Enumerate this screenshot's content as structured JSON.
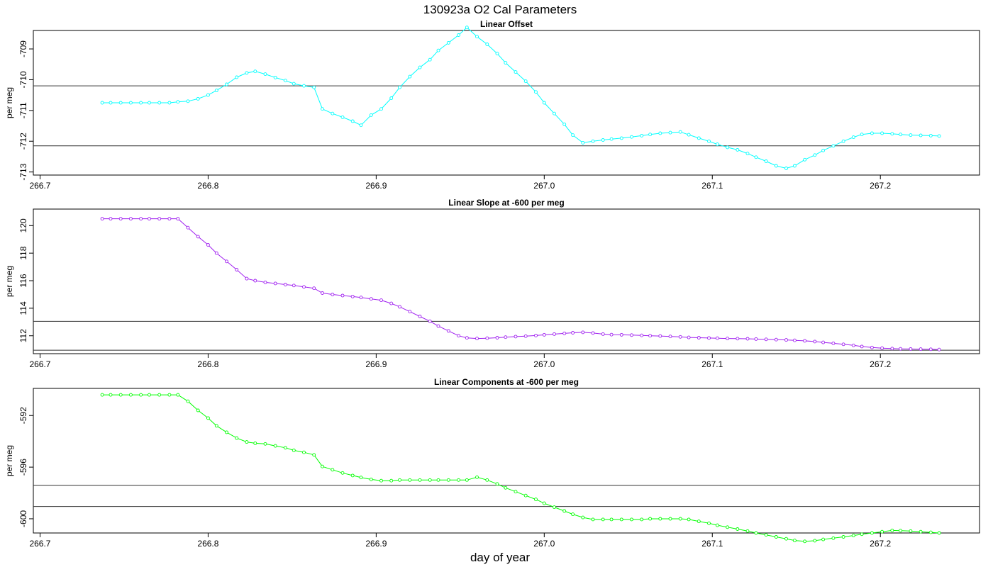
{
  "figure": {
    "title": "130923a   O2 Cal Parameters",
    "xlabel": "day of year"
  },
  "colors": {
    "offset": "#00ffff",
    "slope": "#a020f0",
    "components": "#00ff00",
    "refline": "#333333",
    "axis": "#000000"
  },
  "chart_data": [
    {
      "type": "line",
      "title": "Linear Offset",
      "ylabel": "per meg",
      "xlabel": "day of year",
      "color_key": "offset",
      "xlim": [
        266.696,
        267.259
      ],
      "ylim": [
        -713.1,
        -708.4
      ],
      "xticks": [
        266.7,
        266.8,
        266.9,
        267.0,
        267.1,
        267.2
      ],
      "xtick_labels": [
        "266.7",
        "266.8",
        "266.9",
        "267.0",
        "267.1",
        "267.2"
      ],
      "yticks": [
        -713,
        -712,
        -711,
        -710,
        -709
      ],
      "ytick_labels": [
        "-713",
        "-712",
        "-711",
        "-710",
        "-709"
      ],
      "hlines": [
        -710.2,
        -712.15
      ],
      "x": [
        266.737,
        266.742,
        266.748,
        266.754,
        266.76,
        266.765,
        266.771,
        266.777,
        266.782,
        266.788,
        266.794,
        266.8,
        266.805,
        266.811,
        266.817,
        266.823,
        266.828,
        266.834,
        266.84,
        266.846,
        266.851,
        266.857,
        266.863,
        266.868,
        266.874,
        266.88,
        266.886,
        266.891,
        266.897,
        266.903,
        266.909,
        266.914,
        266.92,
        266.926,
        266.932,
        266.937,
        266.943,
        266.949,
        266.954,
        266.96,
        266.966,
        266.972,
        266.977,
        266.983,
        266.989,
        266.995,
        267.0,
        267.006,
        267.012,
        267.017,
        267.023,
        267.029,
        267.035,
        267.04,
        267.046,
        267.052,
        267.058,
        267.063,
        267.069,
        267.075,
        267.081,
        267.086,
        267.092,
        267.098,
        267.103,
        267.109,
        267.115,
        267.121,
        267.126,
        267.132,
        267.138,
        267.144,
        267.149,
        267.155,
        267.161,
        267.166,
        267.172,
        267.178,
        267.184,
        267.189,
        267.195,
        267.201,
        267.207,
        267.212,
        267.218,
        267.224,
        267.23,
        267.235
      ],
      "values": [
        -710.75,
        -710.75,
        -710.75,
        -710.75,
        -710.75,
        -710.75,
        -710.75,
        -710.75,
        -710.72,
        -710.7,
        -710.62,
        -710.5,
        -710.35,
        -710.15,
        -709.92,
        -709.78,
        -709.73,
        -709.82,
        -709.93,
        -710.03,
        -710.13,
        -710.2,
        -710.25,
        -710.95,
        -711.1,
        -711.22,
        -711.35,
        -711.48,
        -711.15,
        -710.95,
        -710.6,
        -710.25,
        -709.9,
        -709.6,
        -709.35,
        -709.05,
        -708.8,
        -708.55,
        -708.3,
        -708.6,
        -708.85,
        -709.15,
        -709.45,
        -709.75,
        -710.05,
        -710.4,
        -710.75,
        -711.1,
        -711.45,
        -711.8,
        -712.05,
        -712.0,
        -711.96,
        -711.93,
        -711.9,
        -711.86,
        -711.82,
        -711.78,
        -711.74,
        -711.72,
        -711.7,
        -711.79,
        -711.9,
        -712.0,
        -712.1,
        -712.2,
        -712.28,
        -712.4,
        -712.52,
        -712.65,
        -712.8,
        -712.88,
        -712.8,
        -712.6,
        -712.45,
        -712.3,
        -712.15,
        -712.0,
        -711.87,
        -711.78,
        -711.74,
        -711.74,
        -711.76,
        -711.78,
        -711.8,
        -711.81,
        -711.82,
        -711.83
      ]
    },
    {
      "type": "line",
      "title": "Linear Slope at -600 per meg",
      "ylabel": "per meg",
      "xlabel": "day of year",
      "color_key": "slope",
      "xlim": [
        266.696,
        267.259
      ],
      "ylim": [
        110.7,
        121.2
      ],
      "xticks": [
        266.7,
        266.8,
        266.9,
        267.0,
        267.1,
        267.2
      ],
      "xtick_labels": [
        "266.7",
        "266.8",
        "266.9",
        "267.0",
        "267.1",
        "267.2"
      ],
      "yticks": [
        112,
        114,
        116,
        118,
        120
      ],
      "ytick_labels": [
        "112",
        "114",
        "116",
        "118",
        "120"
      ],
      "hlines": [
        113.05,
        110.95
      ],
      "x": [
        266.737,
        266.742,
        266.748,
        266.754,
        266.76,
        266.765,
        266.771,
        266.777,
        266.782,
        266.788,
        266.794,
        266.8,
        266.805,
        266.811,
        266.817,
        266.823,
        266.828,
        266.834,
        266.84,
        266.846,
        266.851,
        266.857,
        266.863,
        266.868,
        266.874,
        266.88,
        266.886,
        266.891,
        266.897,
        266.903,
        266.909,
        266.914,
        266.92,
        266.926,
        266.932,
        266.937,
        266.943,
        266.949,
        266.954,
        266.96,
        266.966,
        266.972,
        266.977,
        266.983,
        266.989,
        266.995,
        267.0,
        267.006,
        267.012,
        267.017,
        267.023,
        267.029,
        267.035,
        267.04,
        267.046,
        267.052,
        267.058,
        267.063,
        267.069,
        267.075,
        267.081,
        267.086,
        267.092,
        267.098,
        267.103,
        267.109,
        267.115,
        267.121,
        267.126,
        267.132,
        267.138,
        267.144,
        267.149,
        267.155,
        267.161,
        267.166,
        267.172,
        267.178,
        267.184,
        267.189,
        267.195,
        267.201,
        267.207,
        267.212,
        267.218,
        267.224,
        267.23,
        267.235
      ],
      "values": [
        120.5,
        120.5,
        120.5,
        120.5,
        120.5,
        120.5,
        120.5,
        120.5,
        120.5,
        119.85,
        119.2,
        118.6,
        118.0,
        117.4,
        116.8,
        116.15,
        116.0,
        115.88,
        115.8,
        115.72,
        115.65,
        115.55,
        115.45,
        115.1,
        115.0,
        114.92,
        114.85,
        114.78,
        114.68,
        114.58,
        114.35,
        114.1,
        113.75,
        113.4,
        113.05,
        112.7,
        112.35,
        112.0,
        111.85,
        111.8,
        111.82,
        111.86,
        111.9,
        111.94,
        111.97,
        112.02,
        112.07,
        112.12,
        112.17,
        112.22,
        112.25,
        112.2,
        112.12,
        112.08,
        112.07,
        112.05,
        112.03,
        112.0,
        111.98,
        111.95,
        111.92,
        111.88,
        111.86,
        111.84,
        111.82,
        111.8,
        111.79,
        111.78,
        111.76,
        111.74,
        111.72,
        111.7,
        111.67,
        111.63,
        111.58,
        111.52,
        111.45,
        111.38,
        111.3,
        111.22,
        111.15,
        111.1,
        111.07,
        111.05,
        111.04,
        111.03,
        111.02,
        111.0
      ]
    },
    {
      "type": "line",
      "title": "Linear Components at -600 per meg",
      "ylabel": "per meg",
      "xlabel": "day of year",
      "color_key": "components",
      "xlim": [
        266.696,
        267.259
      ],
      "ylim": [
        -601.1,
        -589.9
      ],
      "xticks": [
        266.7,
        266.8,
        266.9,
        267.0,
        267.1,
        267.2
      ],
      "xtick_labels": [
        "266.7",
        "266.8",
        "266.9",
        "267.0",
        "267.1",
        "267.2"
      ],
      "yticks": [
        -600,
        -596,
        -592
      ],
      "ytick_labels": [
        "-600",
        "-596",
        "-592"
      ],
      "hlines": [
        -597.4,
        -599.05
      ],
      "x": [
        266.737,
        266.742,
        266.748,
        266.754,
        266.76,
        266.765,
        266.771,
        266.777,
        266.782,
        266.788,
        266.794,
        266.8,
        266.805,
        266.811,
        266.817,
        266.823,
        266.828,
        266.834,
        266.84,
        266.846,
        266.851,
        266.857,
        266.863,
        266.868,
        266.874,
        266.88,
        266.886,
        266.891,
        266.897,
        266.903,
        266.909,
        266.914,
        266.92,
        266.926,
        266.932,
        266.937,
        266.943,
        266.949,
        266.954,
        266.96,
        266.966,
        266.972,
        266.977,
        266.983,
        266.989,
        266.995,
        267.0,
        267.006,
        267.012,
        267.017,
        267.023,
        267.029,
        267.035,
        267.04,
        267.046,
        267.052,
        267.058,
        267.063,
        267.069,
        267.075,
        267.081,
        267.086,
        267.092,
        267.098,
        267.103,
        267.109,
        267.115,
        267.121,
        267.126,
        267.132,
        267.138,
        267.144,
        267.149,
        267.155,
        267.161,
        267.166,
        267.172,
        267.178,
        267.184,
        267.189,
        267.195,
        267.201,
        267.207,
        267.212,
        267.218,
        267.224,
        267.23,
        267.235
      ],
      "values": [
        -590.4,
        -590.4,
        -590.4,
        -590.4,
        -590.4,
        -590.4,
        -590.4,
        -590.4,
        -590.4,
        -590.9,
        -591.6,
        -592.2,
        -592.8,
        -593.3,
        -593.75,
        -594.05,
        -594.15,
        -594.2,
        -594.35,
        -594.5,
        -594.7,
        -594.85,
        -595.05,
        -595.95,
        -596.2,
        -596.45,
        -596.65,
        -596.8,
        -596.95,
        -597.05,
        -597.05,
        -597.0,
        -597.0,
        -597.0,
        -597.0,
        -597.0,
        -597.0,
        -597.0,
        -597.0,
        -596.78,
        -597.0,
        -597.3,
        -597.6,
        -597.9,
        -598.2,
        -598.5,
        -598.8,
        -599.1,
        -599.4,
        -599.65,
        -599.9,
        -600.05,
        -600.05,
        -600.05,
        -600.05,
        -600.05,
        -600.05,
        -600.0,
        -600.0,
        -600.0,
        -600.0,
        -600.05,
        -600.2,
        -600.35,
        -600.5,
        -600.65,
        -600.8,
        -600.95,
        -601.1,
        -601.25,
        -601.4,
        -601.55,
        -601.68,
        -601.75,
        -601.7,
        -601.6,
        -601.5,
        -601.4,
        -601.3,
        -601.2,
        -601.1,
        -601.0,
        -600.9,
        -600.92,
        -600.95,
        -601.0,
        -601.05,
        -601.1
      ]
    }
  ]
}
